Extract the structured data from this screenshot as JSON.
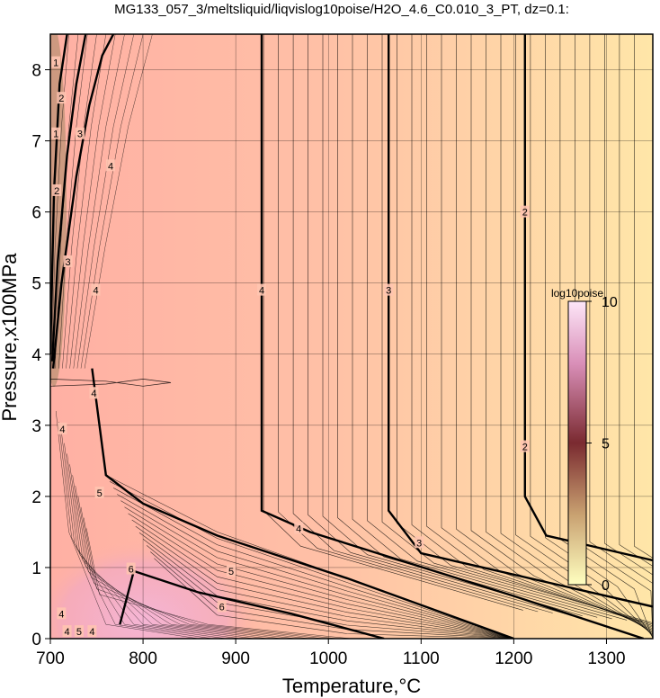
{
  "chart_data": {
    "type": "heatmap",
    "title": "MG133_057_3/meltsliquid/liqvislog10poise/H2O_4.6_C0.010_3_PT, dz=0.1:",
    "xlabel": "Temperature,°C",
    "ylabel": "Pressure,x100MPa",
    "xlim": [
      700,
      1350
    ],
    "ylim": [
      0,
      8.5
    ],
    "x_ticks": [
      700,
      800,
      900,
      1000,
      1100,
      1200,
      1300
    ],
    "y_ticks": [
      0,
      1,
      2,
      3,
      4,
      5,
      6,
      7,
      8
    ],
    "grid": true,
    "colorbar": {
      "title": "log10poise",
      "range": [
        0,
        10
      ],
      "ticks": [
        0,
        5,
        10
      ],
      "colors": [
        "#ffffc0",
        "#c8a070",
        "#7a2a30",
        "#d98fb8",
        "#fde6f8"
      ]
    },
    "background_colors": {
      "left": "#ffb0a4",
      "right": "#ffe6a8",
      "low_t_high_viscosity": "#f5b6d8"
    },
    "contour_levels_labeled": [
      {
        "value": "2",
        "x": [
          1212,
          1212,
          1235,
          1350
        ],
        "y": [
          8.5,
          2.0,
          1.45,
          1.1
        ]
      },
      {
        "value": "3",
        "x": [
          1065,
          1065,
          1100,
          1350
        ],
        "y": [
          8.5,
          1.8,
          1.2,
          0.45
        ]
      },
      {
        "value": "4",
        "x": [
          928,
          928,
          980,
          1200,
          1340
        ],
        "y": [
          8.5,
          1.8,
          1.5,
          0.6,
          0.0
        ]
      },
      {
        "value": "5",
        "x": [
          745,
          760,
          800,
          880,
          1020,
          1200
        ],
        "y": [
          3.8,
          2.3,
          1.9,
          1.45,
          0.85,
          0.0
        ]
      },
      {
        "value": "6",
        "x": [
          775,
          790,
          860,
          960,
          1060
        ],
        "y": [
          0.2,
          0.95,
          0.65,
          0.35,
          0.0
        ]
      },
      {
        "value": "4",
        "x": [
          703,
          712,
          728,
          742,
          756,
          768
        ],
        "y": [
          3.8,
          5.0,
          6.5,
          7.5,
          8.2,
          8.5
        ]
      },
      {
        "value": "3",
        "x": [
          702,
          708,
          718,
          728,
          738
        ],
        "y": [
          3.9,
          5.3,
          6.8,
          7.8,
          8.5
        ]
      },
      {
        "value": "2",
        "x": [
          700,
          704,
          710,
          718
        ],
        "y": [
          4.0,
          6.3,
          7.8,
          8.5
        ]
      }
    ],
    "contour_labels": [
      {
        "text": "2",
        "x": 1212,
        "y": 6.0
      },
      {
        "text": "2",
        "x": 1212,
        "y": 2.7
      },
      {
        "text": "3",
        "x": 1065,
        "y": 4.9
      },
      {
        "text": "3",
        "x": 1098,
        "y": 1.35
      },
      {
        "text": "4",
        "x": 928,
        "y": 4.9
      },
      {
        "text": "4",
        "x": 968,
        "y": 1.55
      },
      {
        "text": "5",
        "x": 753,
        "y": 2.05
      },
      {
        "text": "5",
        "x": 895,
        "y": 0.95
      },
      {
        "text": "6",
        "x": 787,
        "y": 0.98
      },
      {
        "text": "6",
        "x": 885,
        "y": 0.45
      },
      {
        "text": "4",
        "x": 713,
        "y": 2.95
      },
      {
        "text": "4",
        "x": 747,
        "y": 3.45
      },
      {
        "text": "4",
        "x": 749,
        "y": 4.9
      },
      {
        "text": "4",
        "x": 765,
        "y": 6.65
      },
      {
        "text": "3",
        "x": 719,
        "y": 5.3
      },
      {
        "text": "3",
        "x": 732,
        "y": 7.1
      },
      {
        "text": "2",
        "x": 707,
        "y": 6.3
      },
      {
        "text": "2",
        "x": 712,
        "y": 7.6
      },
      {
        "text": "1",
        "x": 706,
        "y": 7.1
      },
      {
        "text": "1",
        "x": 706,
        "y": 8.1
      },
      {
        "text": "4",
        "x": 712,
        "y": 0.35
      },
      {
        "text": "4",
        "x": 718,
        "y": 0.1
      },
      {
        "text": "5",
        "x": 731,
        "y": 0.1
      },
      {
        "text": "4",
        "x": 745,
        "y": 0.1
      }
    ]
  }
}
